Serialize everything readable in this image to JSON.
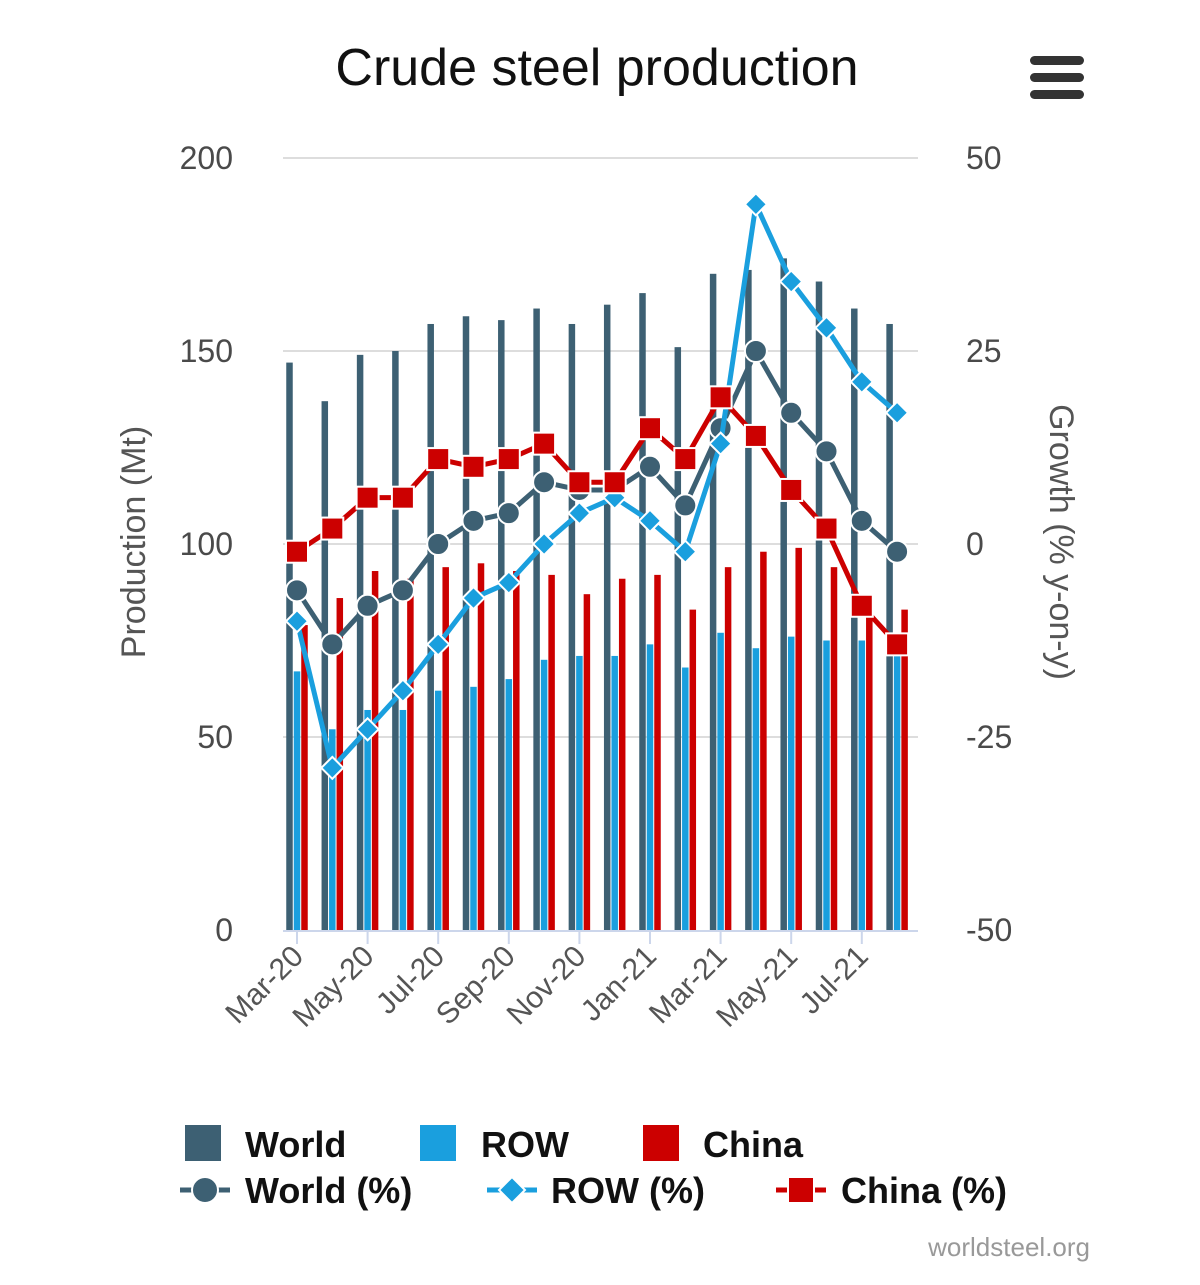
{
  "chart_data": {
    "type": "bar+line",
    "title": "Crude steel production",
    "categories": [
      "Mar-20",
      "Apr-20",
      "May-20",
      "Jun-20",
      "Jul-20",
      "Aug-20",
      "Sep-20",
      "Oct-20",
      "Nov-20",
      "Dec-20",
      "Jan-21",
      "Feb-21",
      "Mar-21",
      "Apr-21",
      "May-21",
      "Jun-21",
      "Jul-21",
      "Aug-21"
    ],
    "x_tick_labels": [
      "Mar-20",
      "May-20",
      "Jul-20",
      "Sep-20",
      "Nov-20",
      "Jan-21",
      "Mar-21",
      "May-21",
      "Jul-21"
    ],
    "y_left": {
      "label": "Production (Mt)",
      "min": 0,
      "max": 200,
      "ticks": [
        0,
        50,
        100,
        150,
        200
      ]
    },
    "y_right": {
      "label": "Growth (% y-on-y)",
      "min": -50,
      "max": 50,
      "ticks": [
        -50,
        -25,
        0,
        25,
        50
      ]
    },
    "grid": true,
    "legend_position": "bottom",
    "bar_series": [
      {
        "name": "World",
        "color": "#3d6073",
        "values": [
          147,
          137,
          149,
          150,
          157,
          159,
          158,
          161,
          157,
          162,
          165,
          151,
          170,
          171,
          174,
          168,
          161,
          157
        ]
      },
      {
        "name": "ROW",
        "color": "#1a9fde",
        "values": [
          67,
          52,
          57,
          57,
          62,
          63,
          65,
          70,
          71,
          71,
          74,
          68,
          77,
          73,
          76,
          75,
          75,
          73
        ]
      },
      {
        "name": "China",
        "color": "#cc0000",
        "values": [
          79,
          86,
          93,
          91,
          94,
          95,
          93,
          92,
          87,
          91,
          92,
          83,
          94,
          98,
          99,
          94,
          87,
          83
        ]
      }
    ],
    "line_series": [
      {
        "name": "World (%)",
        "color": "#3d6073",
        "marker": "circle",
        "values": [
          -6,
          -13,
          -8,
          -6,
          0,
          3,
          4,
          8,
          7,
          7,
          10,
          5,
          15,
          25,
          17,
          12,
          3,
          -1
        ]
      },
      {
        "name": "ROW (%)",
        "color": "#1a9fde",
        "marker": "diamond",
        "values": [
          -10,
          -29,
          -24,
          -19,
          -13,
          -7,
          -5,
          0,
          4,
          6,
          3,
          -1,
          13,
          44,
          34,
          28,
          21,
          17
        ]
      },
      {
        "name": "China (%)",
        "color": "#cc0000",
        "marker": "square",
        "values": [
          -1,
          2,
          6,
          6,
          11,
          10,
          11,
          13,
          8,
          8,
          15,
          11,
          19,
          14,
          7,
          2,
          -8,
          -13
        ]
      }
    ],
    "credit": "worldsteel.org"
  },
  "legend": {
    "items": [
      {
        "label": "World",
        "kind": "bar",
        "color": "#3d6073"
      },
      {
        "label": "ROW",
        "kind": "bar",
        "color": "#1a9fde"
      },
      {
        "label": "China",
        "kind": "bar",
        "color": "#cc0000"
      },
      {
        "label": "World (%)",
        "kind": "line",
        "marker": "circle",
        "color": "#3d6073"
      },
      {
        "label": "ROW (%)",
        "kind": "line",
        "marker": "diamond",
        "color": "#1a9fde"
      },
      {
        "label": "China (%)",
        "kind": "line",
        "marker": "square",
        "color": "#cc0000"
      }
    ]
  },
  "menu": {
    "icon": "hamburger-menu-icon"
  }
}
